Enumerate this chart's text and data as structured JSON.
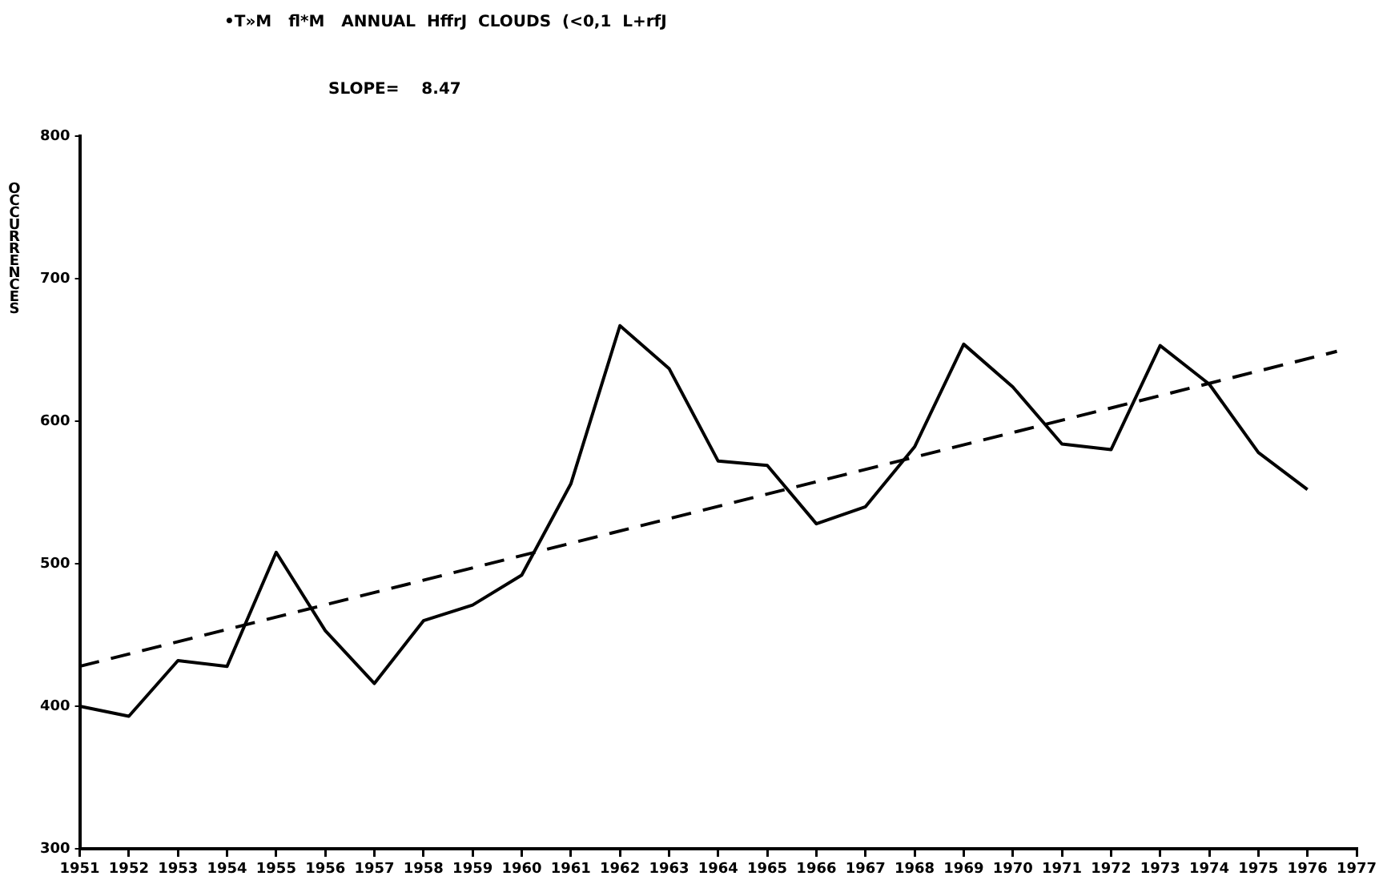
{
  "chart_data": {
    "type": "line",
    "title": "•T»M   fl*M   ANNUAL  HffrJ  CLOUDS  (<0,1  L+rfJ",
    "subtitle": "SLOPE=    8.47",
    "ylabel": "OCCURRENCES",
    "x": [
      1951,
      1952,
      1953,
      1954,
      1955,
      1956,
      1957,
      1958,
      1959,
      1960,
      1961,
      1962,
      1963,
      1964,
      1965,
      1966,
      1967,
      1968,
      1969,
      1970,
      1971,
      1972,
      1973,
      1974,
      1975,
      1976
    ],
    "series": [
      {
        "color": "#000000",
        "line_style": "solid",
        "values": [
          400,
          393,
          432,
          428,
          508,
          453,
          416,
          460,
          471,
          492,
          556,
          667,
          637,
          572,
          569,
          528,
          540,
          582,
          654,
          624,
          584,
          580,
          653,
          626,
          578,
          552
        ]
      },
      {
        "type": "line",
        "color": "#000000",
        "line_style": "dashed",
        "x": [
          1951,
          1976.6
        ],
        "values": [
          428,
          649
        ]
      }
    ],
    "xlim": [
      1951,
      1977
    ],
    "xticks": [
      1951,
      1952,
      1953,
      1954,
      1955,
      1956,
      1957,
      1958,
      1959,
      1960,
      1961,
      1962,
      1963,
      1964,
      1965,
      1966,
      1967,
      1968,
      1969,
      1970,
      1971,
      1972,
      1973,
      1974,
      1975,
      1976,
      1977
    ],
    "ylim": [
      300,
      800
    ],
    "yticks": [
      300,
      400,
      500,
      600,
      700,
      800
    ],
    "grid": false,
    "legend": false,
    "marker": "none"
  }
}
